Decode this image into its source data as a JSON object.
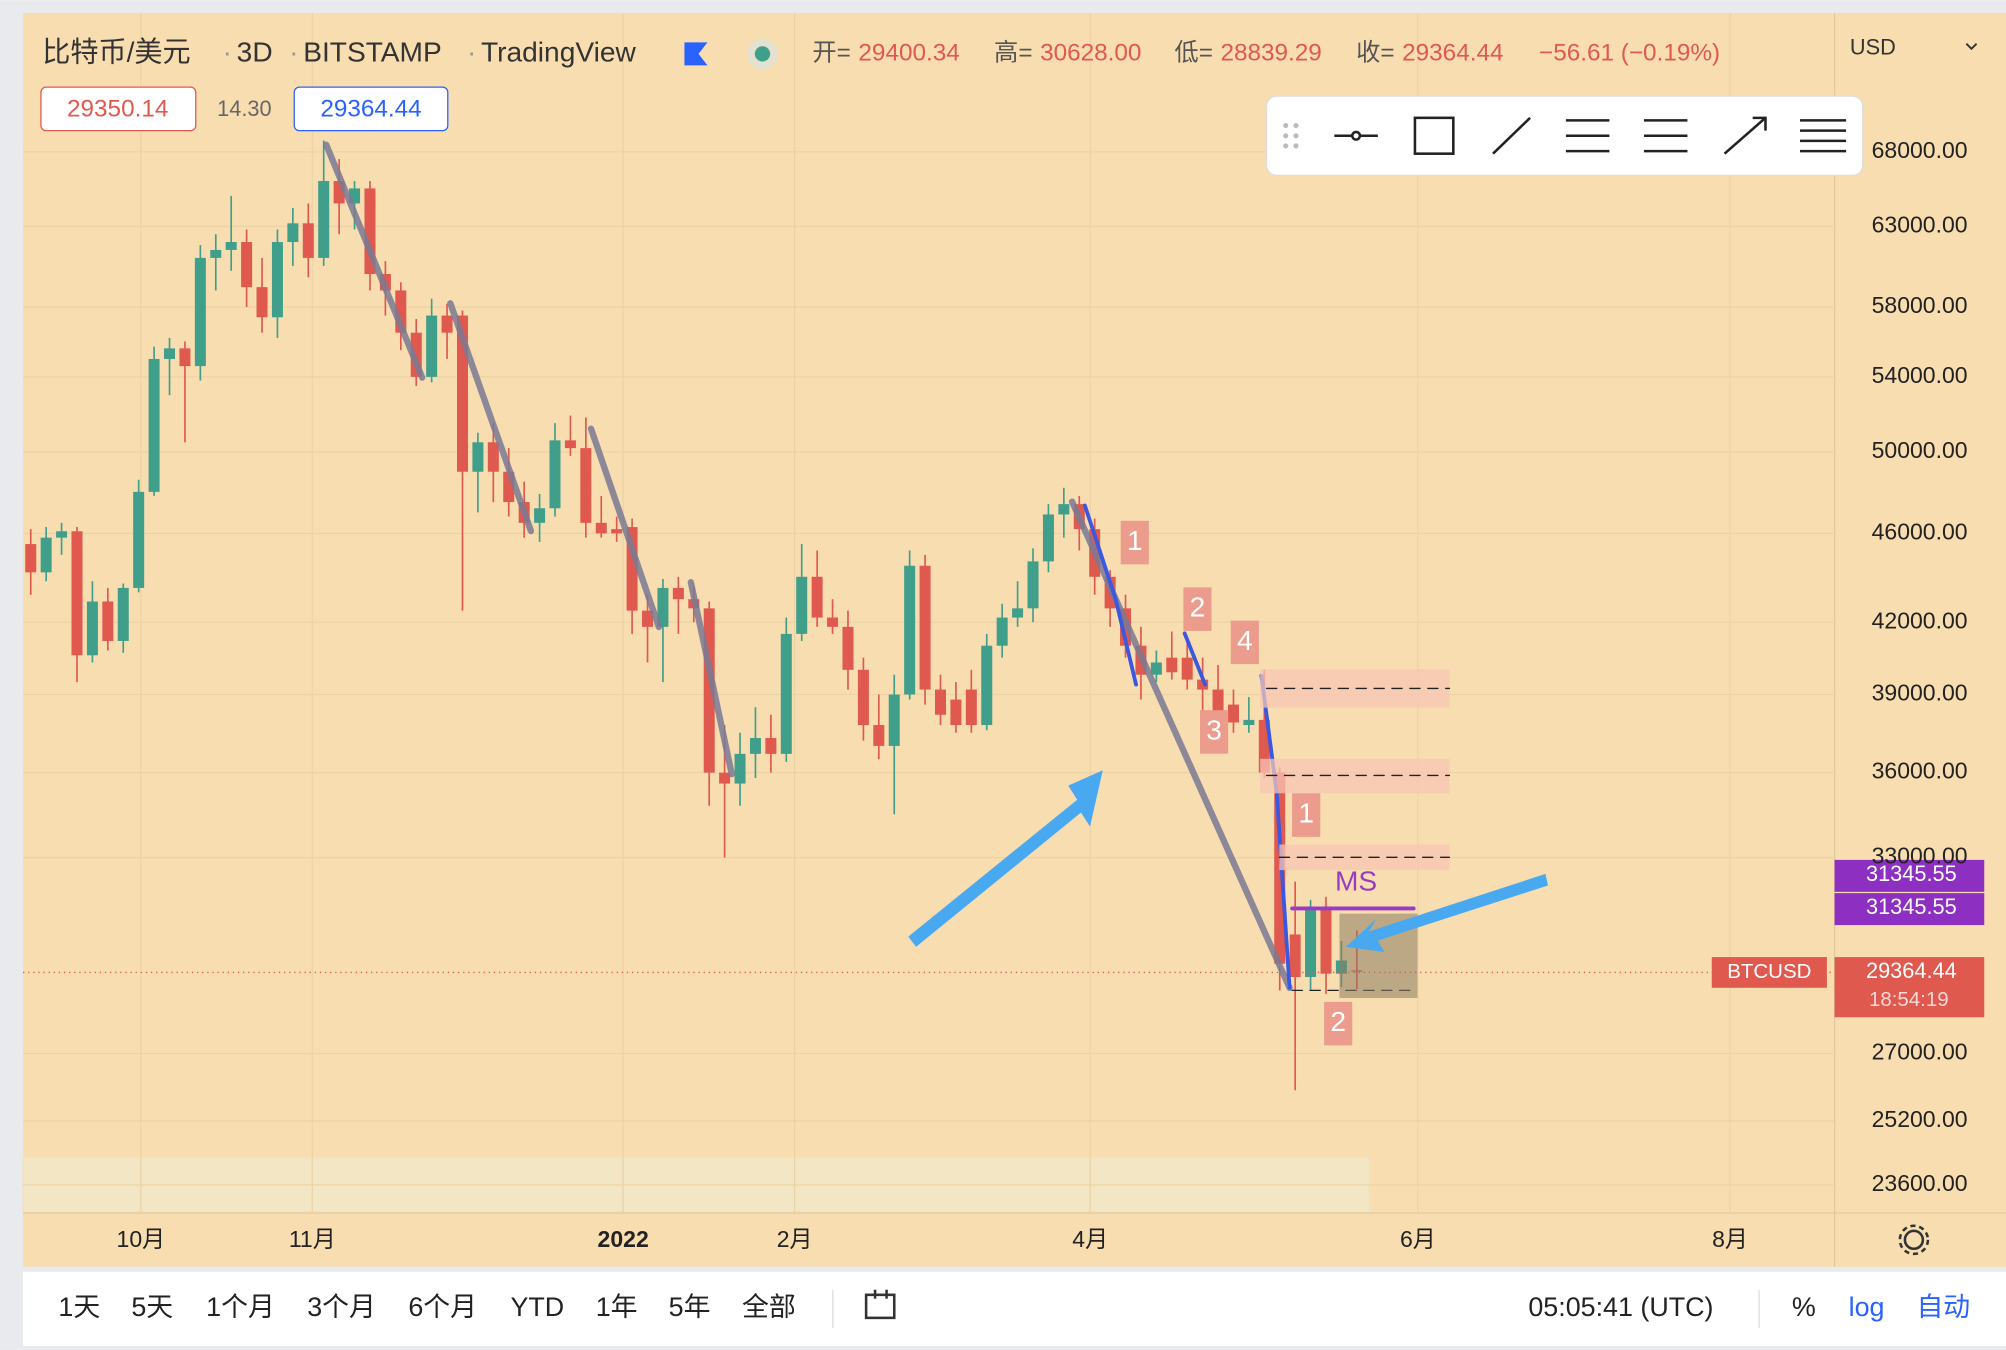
{
  "header": {
    "symbol": "比特币/美元",
    "interval": "3D",
    "exchange": "BITSTAMP",
    "source": "TradingView",
    "open_label": "开=",
    "open": "29400.34",
    "high_label": "高=",
    "high": "30628.00",
    "low_label": "低=",
    "low": "28839.29",
    "close_label": "收=",
    "close": "29364.44",
    "change": "−56.61 (−0.19%)",
    "bid": "29350.14",
    "spread": "14.30",
    "ask": "29364.44",
    "currency": "USD"
  },
  "chart_data": {
    "type": "candlestick",
    "log_scale": true,
    "grid": true,
    "up_color": "#3f9f8b",
    "down_color": "#e0594f",
    "open": [
      45500,
      44200,
      45800,
      46100,
      40600,
      42900,
      41200,
      43500,
      48000,
      55000,
      55600,
      54600,
      61000,
      61500,
      62000,
      59200,
      57400,
      62000,
      63200,
      61000,
      66000,
      64500,
      65500,
      60000,
      59000,
      56500,
      54000,
      57500,
      57500,
      49000,
      50500,
      49000,
      47500,
      46500,
      47200,
      50600,
      50200,
      46500,
      46200,
      46300,
      42500,
      41800,
      43500,
      43000,
      42600,
      36000,
      35600,
      36700,
      37300,
      36700,
      41500,
      44000,
      42200,
      41800,
      40000,
      37800,
      37000,
      39000,
      44500,
      39200,
      38800,
      39200,
      37800,
      41000,
      42200,
      42600,
      44700,
      46900,
      47400,
      46200,
      44000,
      42600,
      41000,
      39800,
      40500,
      40500,
      39600,
      39200,
      38600,
      37800,
      38000,
      36000,
      30500,
      29200,
      31300,
      29300,
      29400
    ],
    "high": [
      46200,
      46300,
      46500,
      46300,
      43800,
      43500,
      43700,
      48600,
      55700,
      56200,
      56000,
      61800,
      62500,
      65000,
      62800,
      61000,
      62800,
      64200,
      64500,
      68800,
      67500,
      66000,
      66000,
      60800,
      59500,
      57300,
      58500,
      58200,
      57800,
      51000,
      51500,
      50200,
      48500,
      47900,
      51500,
      51900,
      51800,
      47800,
      46800,
      46700,
      43200,
      43900,
      44000,
      43600,
      42900,
      37800,
      37500,
      38500,
      38200,
      42200,
      45500,
      45200,
      43000,
      42500,
      40500,
      39000,
      39800,
      45200,
      45000,
      39800,
      39500,
      40000,
      41500,
      42800,
      43800,
      45300,
      47400,
      48200,
      47800,
      46700,
      44300,
      43200,
      41800,
      40800,
      41600,
      41200,
      40500,
      40200,
      39200,
      38900,
      40000,
      36200,
      32200,
      31600,
      31700,
      30300,
      30628
    ],
    "low": [
      43200,
      43800,
      45000,
      39500,
      40300,
      40800,
      40700,
      43300,
      47800,
      53000,
      50500,
      53800,
      59000,
      60200,
      58000,
      56500,
      56200,
      60500,
      59800,
      60500,
      62500,
      62800,
      59000,
      57500,
      55500,
      53500,
      53700,
      55000,
      42500,
      47000,
      47500,
      46800,
      45800,
      45600,
      46800,
      49800,
      45800,
      45800,
      45600,
      41500,
      40300,
      39500,
      41500,
      42000,
      34800,
      33000,
      34800,
      35800,
      36000,
      36400,
      41200,
      41800,
      41500,
      39200,
      37200,
      36500,
      34500,
      38800,
      38600,
      37800,
      37500,
      37500,
      37600,
      40500,
      41800,
      42000,
      44200,
      45800,
      45200,
      43200,
      41800,
      40500,
      38800,
      39500,
      39600,
      39200,
      38300,
      37600,
      37500,
      37500,
      35800,
      28800,
      26000,
      28800,
      28700,
      28900,
      28839
    ],
    "close": [
      44200,
      45800,
      46100,
      40600,
      42900,
      41200,
      43500,
      48000,
      55000,
      55600,
      54600,
      61000,
      61500,
      62000,
      59200,
      57400,
      62000,
      63200,
      61000,
      66000,
      64500,
      65500,
      60000,
      59000,
      56500,
      54000,
      57500,
      56500,
      49000,
      50500,
      49000,
      47500,
      46500,
      47200,
      50600,
      50200,
      46500,
      46000,
      46000,
      42500,
      41800,
      43500,
      43000,
      42600,
      36000,
      35600,
      36700,
      37300,
      36700,
      41500,
      44000,
      42200,
      41800,
      40000,
      37800,
      37000,
      39000,
      44500,
      39200,
      38200,
      37800,
      37800,
      41000,
      42200,
      42600,
      44700,
      46900,
      47400,
      46200,
      44000,
      42600,
      41000,
      39800,
      40300,
      39900,
      39600,
      39200,
      38000,
      37900,
      38000,
      36000,
      29600,
      29200,
      31300,
      29300,
      29700,
      29364
    ],
    "xlim": [
      -0.5,
      116.9
    ],
    "xticks": [
      {
        "value": 7.14,
        "label": "10月"
      },
      {
        "value": 18.26,
        "label": "11月"
      },
      {
        "value": 38.42,
        "label": "2022"
      },
      {
        "value": 49.54,
        "label": "2月"
      },
      {
        "value": 68.71,
        "label": "4月"
      },
      {
        "value": 89.96,
        "label": "6月"
      },
      {
        "value": 110.2,
        "label": "8月"
      }
    ],
    "ylim": [
      22930,
      78400
    ],
    "yticks": [
      {
        "value": 68000,
        "label": "68000.00"
      },
      {
        "value": 63000,
        "label": "63000.00"
      },
      {
        "value": 58000,
        "label": "58000.00"
      },
      {
        "value": 54000,
        "label": "54000.00"
      },
      {
        "value": 50000,
        "label": "50000.00"
      },
      {
        "value": 46000,
        "label": "46000.00"
      },
      {
        "value": 42000,
        "label": "42000.00"
      },
      {
        "value": 39000,
        "label": "39000.00"
      },
      {
        "value": 36000,
        "label": "36000.00"
      },
      {
        "value": 33000,
        "label": "33000.00"
      },
      {
        "value": 27000,
        "label": "27000.00"
      },
      {
        "value": 25200,
        "label": "25200.00"
      },
      {
        "value": 23600,
        "label": "23600.00"
      }
    ]
  },
  "annotations": {
    "labels": [
      "1",
      "2",
      "4",
      "3",
      "1",
      "2"
    ],
    "ms": "MS"
  },
  "price_tags": {
    "levels": [
      "31345.55",
      "31345.55"
    ],
    "symbol": "BTCUSD",
    "last": "29364.44",
    "countdown": "18:54:19"
  },
  "bottom_bar": {
    "ranges": [
      "1天",
      "5天",
      "1个月",
      "3个月",
      "6个月",
      "YTD",
      "1年",
      "5年",
      "全部"
    ],
    "time": "05:05:41 (UTC)",
    "percent": "%",
    "log": "log",
    "auto": "自动"
  }
}
